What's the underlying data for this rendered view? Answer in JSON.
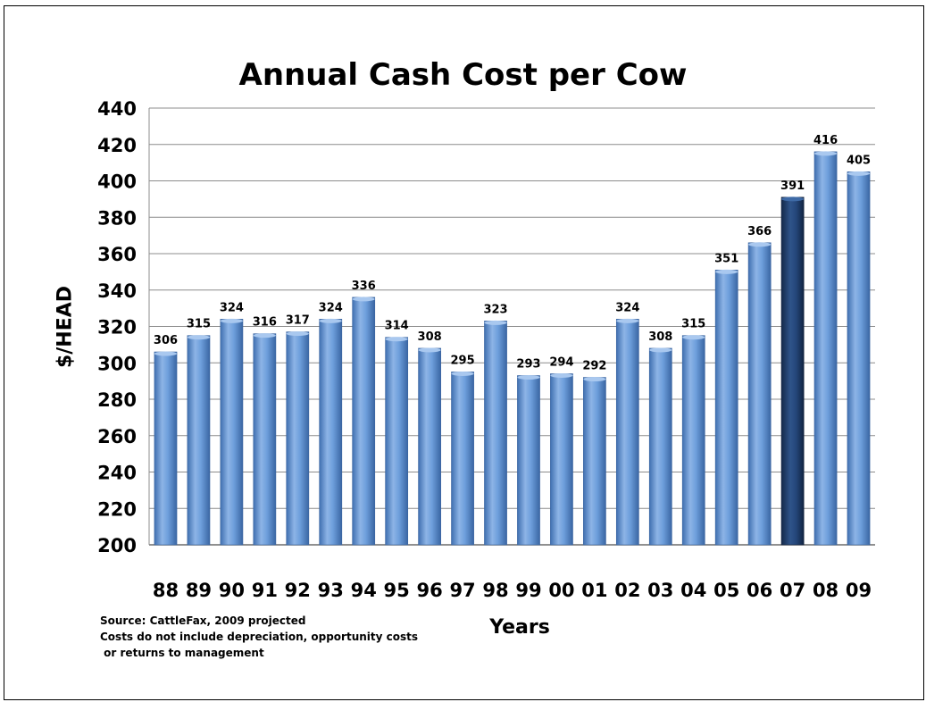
{
  "chart_data": {
    "type": "bar",
    "title": "Annual Cash Cost per Cow",
    "xlabel": "Years",
    "ylabel": "$/HEAD",
    "ylim": [
      200,
      440
    ],
    "yticks": [
      200,
      220,
      240,
      260,
      280,
      300,
      320,
      340,
      360,
      380,
      400,
      420,
      440
    ],
    "grid": true,
    "legend": "none",
    "categories": [
      "88",
      "89",
      "90",
      "91",
      "92",
      "93",
      "94",
      "95",
      "96",
      "97",
      "98",
      "99",
      "00",
      "01",
      "02",
      "03",
      "04",
      "05",
      "06",
      "07",
      "08",
      "09"
    ],
    "values": [
      306,
      315,
      324,
      316,
      317,
      324,
      336,
      314,
      308,
      295,
      323,
      293,
      294,
      292,
      324,
      308,
      315,
      351,
      366,
      391,
      416,
      405
    ],
    "highlight_category": "07",
    "colors": {
      "bar": "#5b8fd0",
      "bar_highlight": "#1f3b66",
      "grid": "#8c8c8c"
    }
  },
  "notes": [
    "Source: CattleFax, 2009 projected",
    "Costs do not include depreciation, opportunity costs",
    " or returns to management"
  ]
}
